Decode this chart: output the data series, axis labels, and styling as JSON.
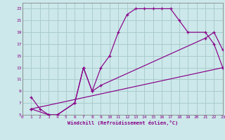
{
  "xlabel": "Windchill (Refroidissement éolien,°C)",
  "xlim": [
    0,
    23
  ],
  "ylim": [
    5,
    24
  ],
  "xticks": [
    0,
    1,
    2,
    3,
    4,
    5,
    6,
    7,
    8,
    9,
    10,
    11,
    12,
    13,
    14,
    15,
    16,
    17,
    18,
    19,
    20,
    21,
    22,
    23
  ],
  "yticks": [
    5,
    7,
    9,
    11,
    13,
    15,
    17,
    19,
    21,
    23
  ],
  "ytick_labels": [
    "5",
    "7",
    "9",
    "11",
    "13",
    "15",
    "17",
    "19",
    "21",
    "23"
  ],
  "bg_color": "#cce8ea",
  "grid_color": "#aacccc",
  "line_color": "#880088",
  "curve1_x": [
    1,
    2,
    3,
    4,
    6,
    7,
    8,
    9,
    10,
    11,
    12,
    13,
    14,
    15,
    16,
    17,
    18,
    19,
    21,
    22,
    23
  ],
  "curve1_y": [
    8,
    6,
    5,
    5,
    7,
    13,
    9,
    13,
    15,
    19,
    22,
    23,
    23,
    23,
    23,
    23,
    21,
    19,
    19,
    17,
    13
  ],
  "curve2_x": [
    1,
    3,
    4,
    6,
    7,
    8,
    9,
    21,
    22,
    23
  ],
  "curve2_y": [
    6,
    5,
    5,
    7,
    13,
    9,
    10,
    18,
    19,
    16
  ],
  "curve3_x": [
    1,
    23
  ],
  "curve3_y": [
    6,
    13
  ]
}
